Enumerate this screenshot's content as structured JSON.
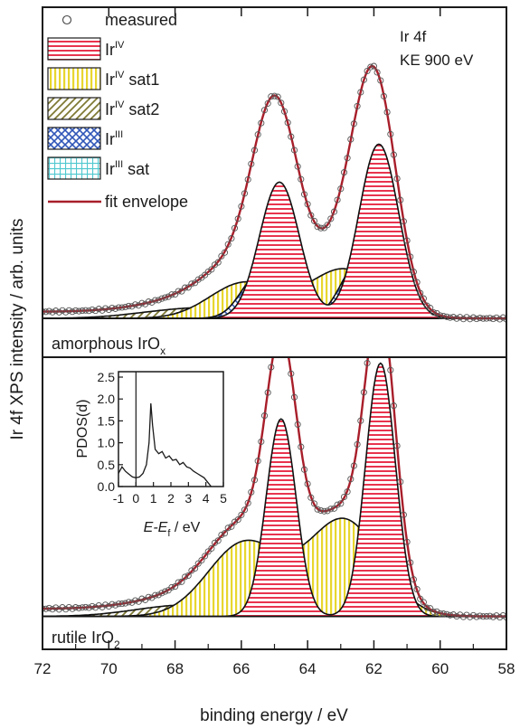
{
  "figure": {
    "y_axis_label": "Ir 4f XPS intensity / arb. units",
    "x_axis_label": "binding energy / eV",
    "x_ticks": [
      "72",
      "70",
      "68",
      "66",
      "64",
      "62",
      "60",
      "58"
    ],
    "info_line1": "Ir 4f",
    "info_line2": "KE 900 eV",
    "legend": [
      {
        "key": "measured",
        "text": "measured",
        "sup": "",
        "suffix": "",
        "style": "circle"
      },
      {
        "key": "ir4",
        "text": "Ir",
        "sup": "IV",
        "suffix": "",
        "style": "red-h",
        "color": "#e8344e"
      },
      {
        "key": "ir4sat1",
        "text": "Ir",
        "sup": "IV",
        "suffix": " sat1",
        "style": "yellow-v",
        "color": "#e8d62e"
      },
      {
        "key": "ir4sat2",
        "text": "Ir",
        "sup": "IV",
        "suffix": " sat2",
        "style": "olive-d",
        "color": "#7f7a35"
      },
      {
        "key": "ir3",
        "text": "Ir",
        "sup": "III",
        "suffix": "",
        "style": "blue-x",
        "color": "#2f56b8"
      },
      {
        "key": "ir3sat",
        "text": "Ir",
        "sup": "III",
        "suffix": " sat",
        "style": "cyan-g",
        "color": "#4fc8cf"
      },
      {
        "key": "envelope",
        "text": "fit envelope",
        "sup": "",
        "suffix": "",
        "style": "line",
        "color": "#a81e2a"
      }
    ],
    "panel_top_label": {
      "text": "amorphous IrO",
      "sub": "x"
    },
    "panel_bottom_label": {
      "text": "rutile IrO",
      "sub": "2"
    },
    "inset": {
      "ylabel": "PDOS(d)",
      "xlabel_main": "E-E",
      "xlabel_sub": "f",
      "xlabel_unit": " / eV",
      "y_ticks": [
        "0.0",
        "0.5",
        "1.0",
        "1.5",
        "2.0",
        "2.5"
      ],
      "x_ticks": [
        "-1",
        "0",
        "1",
        "2",
        "3",
        "4",
        "5"
      ]
    }
  },
  "chart_data": [
    {
      "type": "line",
      "title": "amorphous IrOx",
      "xlabel": "binding energy / eV",
      "ylabel": "Ir 4f XPS intensity / arb. units",
      "xlim": [
        72,
        58
      ],
      "x_reversed": true,
      "baseline": 0.04,
      "components": [
        {
          "name": "IrIV",
          "peaks": [
            {
              "center": 61.85,
              "height": 0.78,
              "sigma": 0.6
            },
            {
              "center": 64.85,
              "height": 0.61,
              "sigma": 0.6
            }
          ]
        },
        {
          "name": "IrIV sat1",
          "peaks": [
            {
              "center": 62.9,
              "height": 0.22,
              "sigma": 1.05
            },
            {
              "center": 65.9,
              "height": 0.16,
              "sigma": 1.05
            }
          ]
        },
        {
          "name": "IrIV sat2",
          "peaks": [
            {
              "center": 64.6,
              "height": 0.05,
              "sigma": 1.5
            },
            {
              "center": 67.6,
              "height": 0.04,
              "sigma": 1.5
            }
          ]
        },
        {
          "name": "IrIII",
          "peaks": [
            {
              "center": 62.45,
              "height": 0.25,
              "sigma": 0.55
            },
            {
              "center": 65.45,
              "height": 0.2,
              "sigma": 0.55
            }
          ]
        },
        {
          "name": "IrIII sat",
          "peaks": [
            {
              "center": 63.5,
              "height": 0.04,
              "sigma": 1.4
            },
            {
              "center": 66.5,
              "height": 0.03,
              "sigma": 1.4
            }
          ]
        }
      ]
    },
    {
      "type": "line",
      "title": "rutile IrO2",
      "xlabel": "binding energy / eV",
      "ylabel": "Ir 4f XPS intensity / arb. units",
      "xlim": [
        72,
        58
      ],
      "x_reversed": true,
      "baseline": 0.03,
      "components": [
        {
          "name": "IrIV",
          "peaks": [
            {
              "center": 61.8,
              "height": 1.0,
              "sigma": 0.45
            },
            {
              "center": 64.8,
              "height": 0.78,
              "sigma": 0.45
            }
          ]
        },
        {
          "name": "IrIV sat1",
          "peaks": [
            {
              "center": 62.9,
              "height": 0.38,
              "sigma": 1.1
            },
            {
              "center": 65.9,
              "height": 0.29,
              "sigma": 1.1
            }
          ]
        },
        {
          "name": "IrIV sat2",
          "peaks": [
            {
              "center": 64.9,
              "height": 0.05,
              "sigma": 1.4
            },
            {
              "center": 67.9,
              "height": 0.04,
              "sigma": 1.4
            }
          ]
        }
      ]
    },
    {
      "type": "line",
      "title": "PDOS inset",
      "xlabel": "E-Ef / eV",
      "ylabel": "PDOS(d)",
      "xlim": [
        -1,
        5
      ],
      "ylim": [
        0,
        2.5
      ],
      "x": [
        -1.0,
        -0.8,
        -0.6,
        -0.4,
        -0.2,
        0.0,
        0.2,
        0.4,
        0.6,
        0.75,
        0.85,
        0.95,
        1.1,
        1.3,
        1.5,
        1.7,
        1.9,
        2.1,
        2.3,
        2.5,
        2.7,
        2.9,
        3.1,
        3.3,
        3.5,
        3.7,
        3.9,
        4.1,
        4.3
      ],
      "y": [
        0.3,
        0.45,
        0.35,
        0.28,
        0.22,
        0.2,
        0.22,
        0.3,
        0.5,
        1.0,
        1.9,
        1.4,
        0.85,
        0.75,
        0.8,
        0.65,
        0.7,
        0.6,
        0.62,
        0.5,
        0.55,
        0.45,
        0.42,
        0.35,
        0.3,
        0.25,
        0.2,
        0.1,
        0.0
      ]
    }
  ]
}
